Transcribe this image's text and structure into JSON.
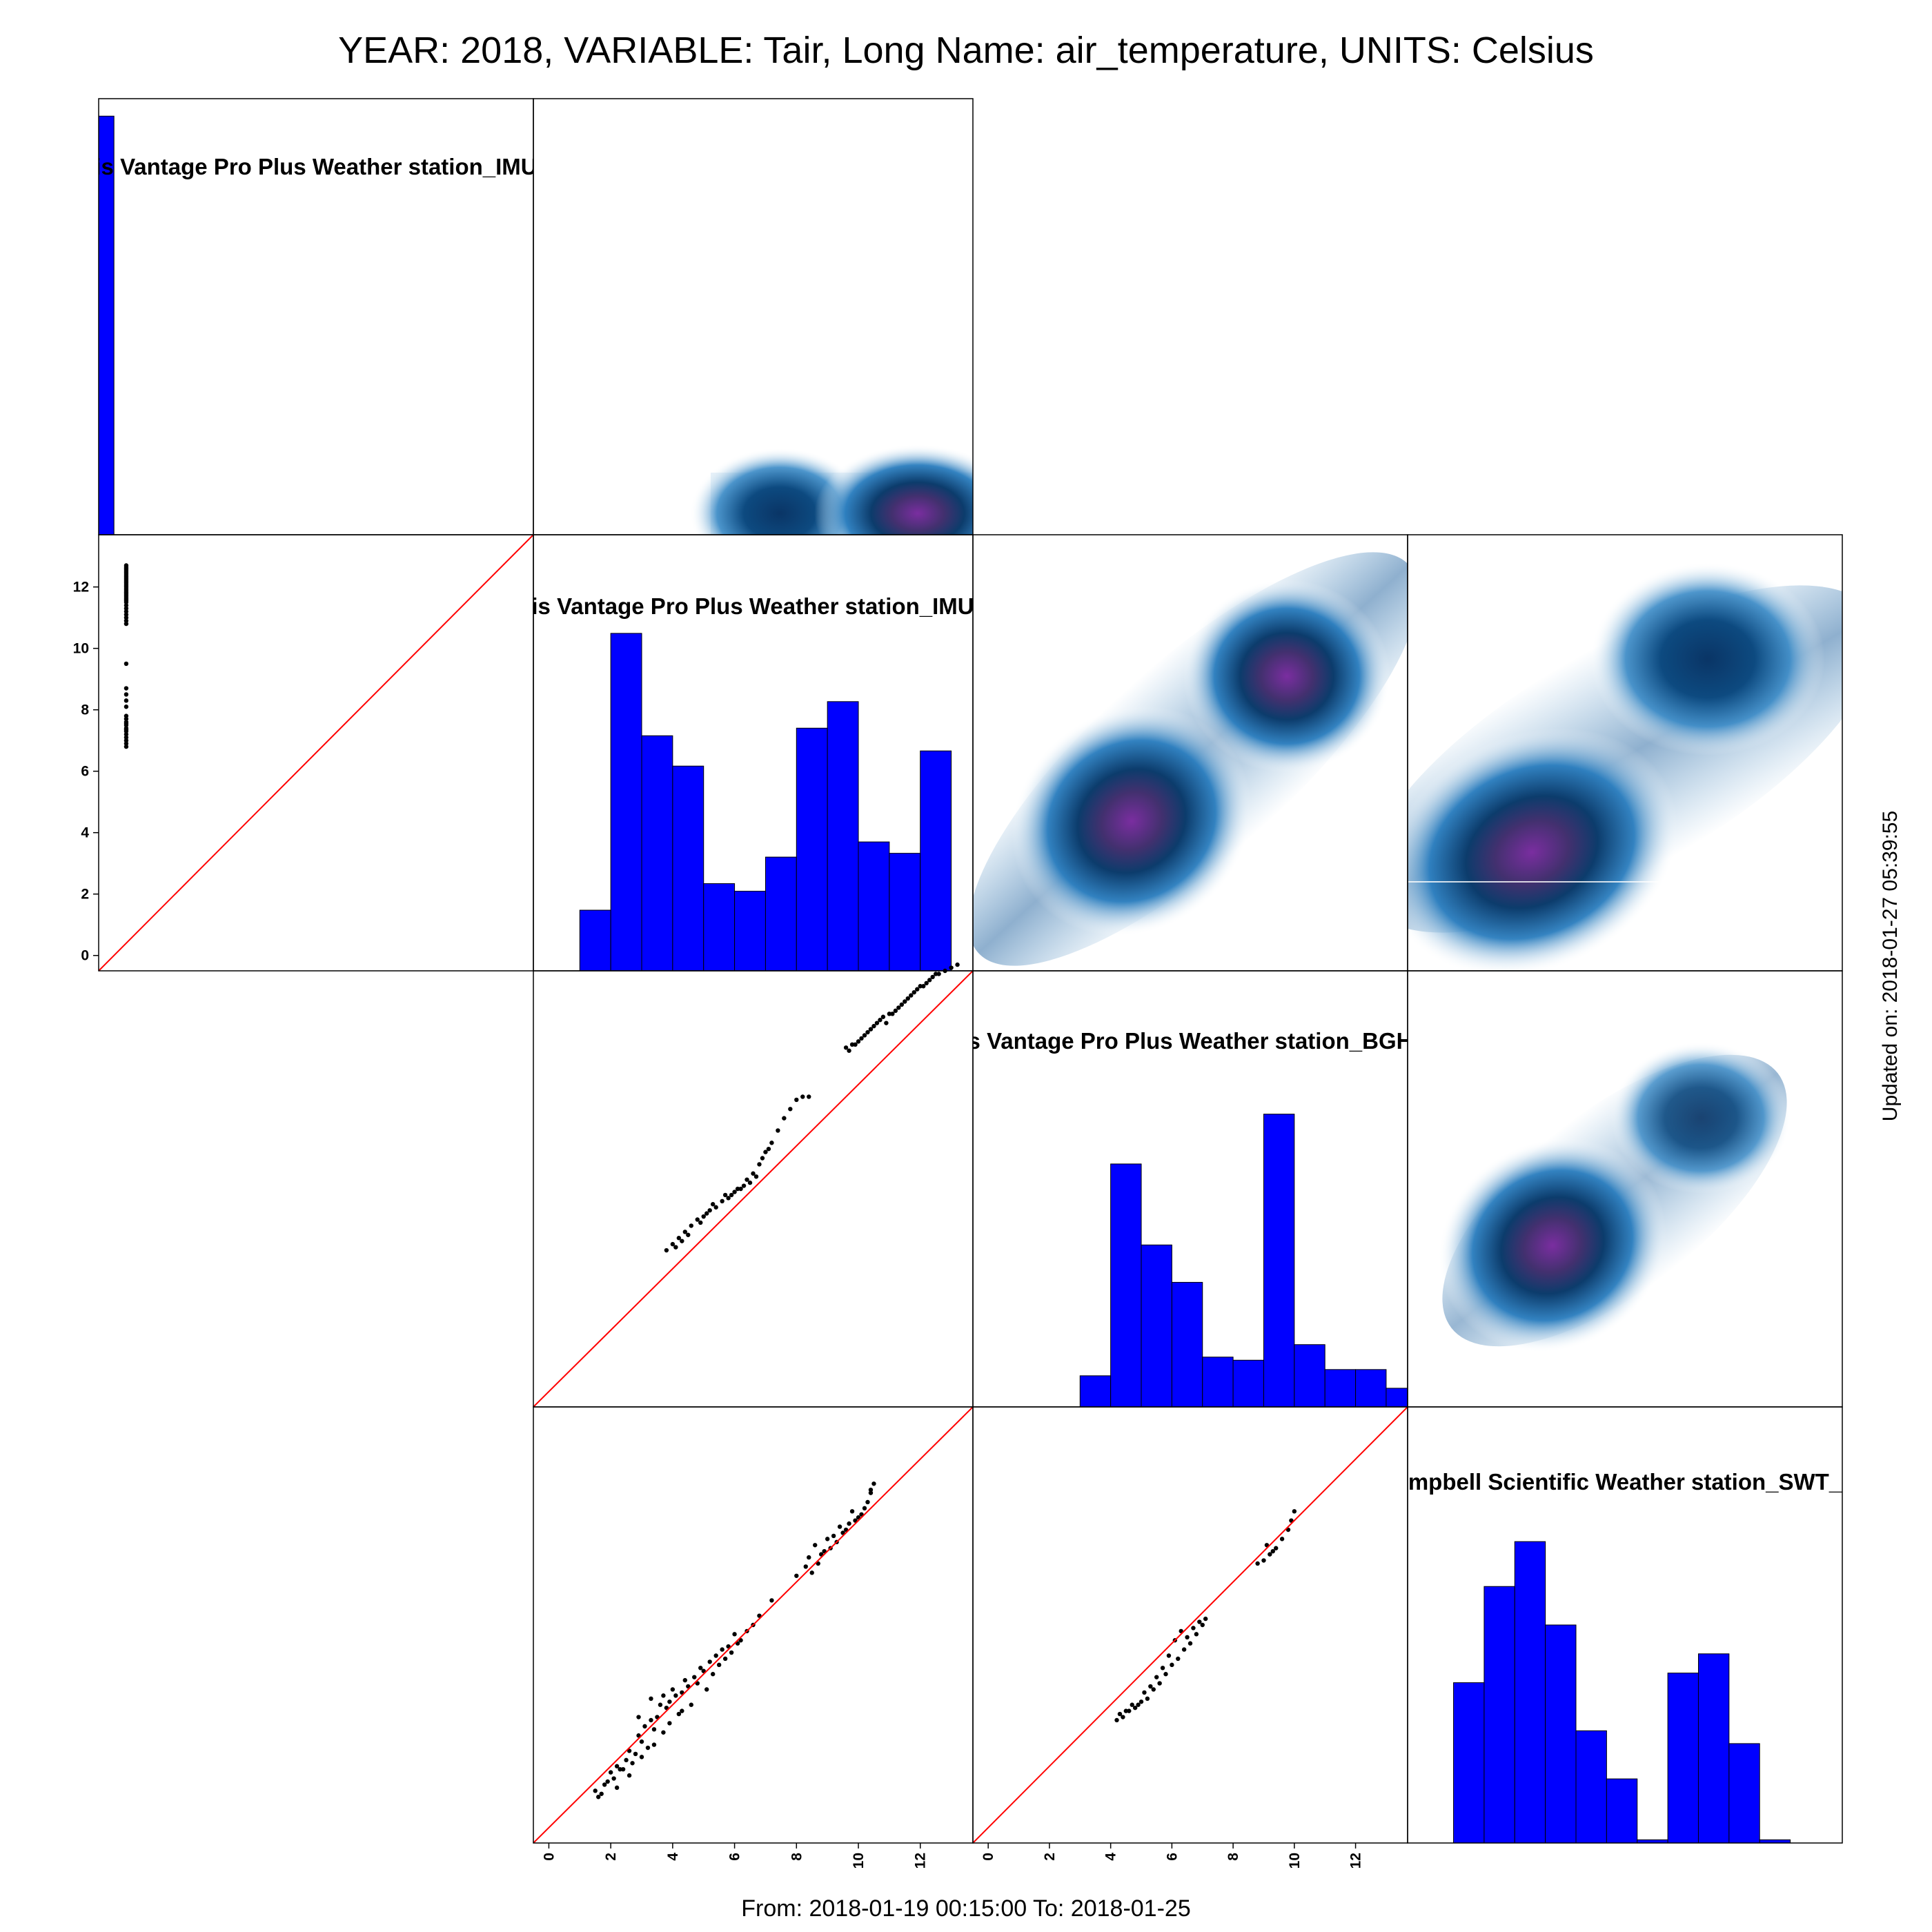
{
  "title": "YEAR: 2018, VARIABLE: Tair, Long Name: air_temperature, UNITS: Celsius",
  "footer": "From: 2018-01-19 00:15:00 To: 2018-01-25",
  "updated": "Updated on: 2018-01-27 05:39:55",
  "colors": {
    "hist": "#0000ff",
    "identity_line": "#ff0000",
    "points": "#000000",
    "density_ramp": [
      "#ffffff",
      "#2f7fc0",
      "#0d3f70",
      "#7a2ea0"
    ]
  },
  "chart_data": {
    "type": "scatter-matrix",
    "stations": [
      "is Vantage Pro Plus Weather station_IMU",
      "is Vantage Pro Plus Weather station_IMU",
      "s Vantage Pro Plus Weather station_BGH",
      "mpbell Scientific  Weather station_SWT_"
    ],
    "axis_range": [
      -0.5,
      13.7
    ],
    "left_ticks": [
      "0",
      "2",
      "4",
      "6",
      "8",
      "10",
      "12"
    ],
    "bottom_ticks_panel2": [
      "0",
      "2",
      "4",
      "6",
      "8",
      "10",
      "12"
    ],
    "bottom_ticks_panel3": [
      "0",
      "2",
      "4",
      "6",
      "8",
      "10",
      "12"
    ],
    "histograms": [
      {
        "panel": "1-1",
        "bins": [
          [
            -0.5,
            0.0,
            24
          ]
        ],
        "ymax": 25
      },
      {
        "panel": "2-2",
        "bins": [
          [
            1.0,
            2.0,
            1.6
          ],
          [
            2.0,
            3.0,
            8.9
          ],
          [
            3.0,
            4.0,
            6.2
          ],
          [
            4.0,
            5.0,
            5.4
          ],
          [
            5.0,
            6.0,
            2.3
          ],
          [
            6.0,
            7.0,
            2.1
          ],
          [
            7.0,
            8.0,
            3.0
          ],
          [
            8.0,
            9.0,
            6.4
          ],
          [
            9.0,
            10.0,
            7.1
          ],
          [
            10.0,
            11.0,
            3.4
          ],
          [
            11.0,
            12.0,
            3.1
          ],
          [
            12.0,
            13.0,
            5.8
          ]
        ],
        "ymax": 11.5
      },
      {
        "panel": "3-3",
        "bins": [
          [
            3.0,
            4.0,
            1.0
          ],
          [
            4.0,
            5.0,
            7.8
          ],
          [
            5.0,
            6.0,
            5.2
          ],
          [
            6.0,
            7.0,
            4.0
          ],
          [
            7.0,
            8.0,
            1.6
          ],
          [
            8.0,
            9.0,
            1.5
          ],
          [
            9.0,
            10.0,
            9.4
          ],
          [
            10.0,
            11.0,
            2.0
          ],
          [
            11.0,
            12.0,
            1.2
          ],
          [
            12.0,
            13.0,
            1.2
          ],
          [
            13.0,
            14.0,
            0.6
          ]
        ],
        "ymax": 14.0
      },
      {
        "panel": "4-4",
        "bins": [
          [
            1.0,
            2.0,
            5.0
          ],
          [
            2.0,
            3.0,
            8.0
          ],
          [
            3.0,
            4.0,
            9.4
          ],
          [
            4.0,
            5.0,
            6.8
          ],
          [
            5.0,
            6.0,
            3.5
          ],
          [
            6.0,
            7.0,
            2.0
          ],
          [
            7.0,
            8.0,
            0.1
          ],
          [
            8.0,
            9.0,
            5.3
          ],
          [
            9.0,
            10.0,
            5.9
          ],
          [
            10.0,
            11.0,
            3.1
          ],
          [
            11.0,
            12.0,
            0.1
          ]
        ],
        "ymax": 13.6
      }
    ],
    "scatter": [
      {
        "panel": "2-1",
        "x": [
          0.4,
          0.4,
          0.4,
          0.4,
          0.4,
          0.4,
          0.4,
          0.4,
          0.4,
          0.4,
          0.4,
          0.4,
          0.4,
          0.4,
          0.4,
          0.4,
          0.4,
          0.4,
          0.4,
          0.4,
          0.4,
          0.4,
          0.4,
          0.4,
          0.4,
          0.4,
          0.4,
          0.4,
          0.4,
          0.4,
          0.4,
          0.4,
          0.4,
          0.4,
          0.4,
          0.4,
          0.4,
          0.4,
          0.4,
          0.4,
          0.4,
          0.4,
          0.4,
          0.4,
          0.4,
          0.4,
          0.4,
          0.4,
          0.4,
          0.4
        ],
        "y": [
          12.6,
          12.5,
          12.4,
          12.3,
          12.2,
          12.1,
          12.0,
          11.9,
          11.8,
          11.7,
          11.6,
          11.5,
          11.4,
          11.3,
          11.2,
          11.1,
          11.0,
          10.9,
          10.8,
          12.7,
          12.65,
          12.55,
          12.45,
          12.35,
          12.25,
          12.15,
          12.05,
          11.95,
          11.85,
          11.75,
          11.65,
          11.55,
          9.5,
          8.7,
          8.5,
          8.3,
          8.1,
          7.8,
          7.7,
          7.6,
          7.5,
          7.4,
          7.3,
          7.2,
          7.1,
          7.0,
          6.9,
          6.8,
          7.35,
          7.55
        ]
      },
      {
        "panel": "3-2",
        "x": [
          3.8,
          4.0,
          4.2,
          4.4,
          4.6,
          4.8,
          5.0,
          5.2,
          5.4,
          5.6,
          5.8,
          6.0,
          6.2,
          6.4,
          6.6,
          6.8,
          7.0,
          7.2,
          7.4,
          7.6,
          7.8,
          8.0,
          8.2,
          8.4,
          9.6,
          9.8,
          10.0,
          10.2,
          10.4,
          10.6,
          10.8,
          11.0,
          11.2,
          11.4,
          11.6,
          11.8,
          12.0,
          12.2,
          12.4,
          12.6,
          12.8,
          13.0,
          13.2,
          4.1,
          4.3,
          4.5,
          4.9,
          5.1,
          5.3,
          5.7,
          5.9,
          6.1,
          6.3,
          6.5,
          6.7,
          6.9,
          7.1,
          9.7,
          9.9,
          10.1,
          10.3,
          10.5,
          10.7,
          10.9,
          11.1,
          11.3,
          11.5,
          11.7,
          11.9,
          12.1,
          12.3,
          12.5
        ],
        "y": [
          4.6,
          4.8,
          5.0,
          5.2,
          5.4,
          5.6,
          5.7,
          5.9,
          6.0,
          6.2,
          6.3,
          6.5,
          6.6,
          6.9,
          7.1,
          7.4,
          7.8,
          8.1,
          8.5,
          8.9,
          9.2,
          9.5,
          9.6,
          9.6,
          11.2,
          11.3,
          11.4,
          11.6,
          11.8,
          12.0,
          12.2,
          12.3,
          12.4,
          12.6,
          12.8,
          13.0,
          13.2,
          13.3,
          13.5,
          13.6,
          13.7,
          13.8,
          13.9,
          4.7,
          4.9,
          5.1,
          5.5,
          5.8,
          6.1,
          6.4,
          6.4,
          6.6,
          6.7,
          6.8,
          7.0,
          7.6,
          7.9,
          11.1,
          11.3,
          11.5,
          11.7,
          11.9,
          12.1,
          12.0,
          12.3,
          12.5,
          12.7,
          12.9,
          13.1,
          13.2,
          13.4,
          13.6
        ]
      },
      {
        "panel": "4-2",
        "x": [
          1.5,
          1.7,
          1.9,
          2.0,
          2.2,
          2.3,
          2.5,
          2.6,
          2.8,
          2.9,
          3.0,
          3.1,
          3.3,
          3.4,
          3.5,
          3.6,
          3.8,
          3.9,
          4.0,
          4.1,
          4.3,
          4.4,
          4.5,
          4.7,
          4.9,
          5.0,
          5.2,
          5.4,
          5.6,
          5.8,
          6.0,
          6.2,
          6.4,
          6.6,
          6.8,
          7.2,
          8.0,
          8.3,
          8.5,
          8.7,
          8.9,
          9.1,
          9.3,
          9.5,
          9.7,
          9.9,
          10.0,
          10.1,
          10.2,
          10.3,
          10.4,
          10.5,
          1.8,
          2.1,
          2.4,
          2.7,
          3.2,
          3.7,
          4.2,
          4.6,
          4.8,
          5.1,
          5.3,
          5.5,
          5.7,
          5.9,
          6.1,
          8.4,
          8.6,
          8.8,
          9.0,
          9.2,
          9.4,
          9.6,
          9.8,
          10.4,
          1.6,
          2.2,
          2.6,
          3.0,
          3.4,
          3.9,
          4.3,
          2.9,
          3.3,
          3.7
        ],
        "y": [
          1.2,
          1.1,
          1.5,
          1.8,
          2.0,
          1.9,
          2.2,
          2.5,
          2.4,
          3.0,
          2.8,
          3.3,
          3.5,
          3.2,
          3.6,
          4.0,
          3.9,
          4.1,
          4.5,
          4.3,
          4.4,
          4.8,
          4.6,
          4.9,
          5.2,
          5.1,
          5.4,
          5.6,
          5.8,
          5.9,
          6.3,
          6.1,
          6.4,
          6.6,
          6.9,
          7.4,
          8.2,
          8.5,
          8.3,
          8.6,
          9.0,
          9.1,
          9.3,
          9.6,
          9.9,
          10.0,
          10.1,
          10.2,
          10.4,
          10.6,
          10.9,
          11.2,
          1.4,
          1.6,
          1.9,
          2.1,
          2.6,
          3.1,
          3.7,
          4.0,
          4.7,
          4.5,
          5.0,
          5.3,
          5.5,
          5.7,
          6.0,
          8.8,
          9.2,
          8.9,
          9.4,
          9.5,
          9.8,
          9.7,
          10.3,
          11.0,
          1.0,
          1.3,
          1.7,
          2.3,
          2.7,
          3.4,
          3.8,
          3.6,
          4.2,
          4.3
        ]
      },
      {
        "panel": "4-3",
        "x": [
          4.2,
          4.4,
          4.6,
          4.8,
          5.0,
          5.2,
          5.4,
          5.6,
          5.8,
          6.0,
          6.2,
          6.4,
          6.6,
          6.8,
          7.0,
          7.1,
          8.8,
          9.0,
          9.2,
          9.4,
          9.6,
          9.8,
          9.9,
          10.0,
          4.3,
          4.5,
          4.7,
          4.9,
          5.1,
          5.3,
          5.5,
          5.7,
          5.9,
          6.1,
          6.3,
          6.5,
          6.7,
          6.9,
          9.1,
          9.3
        ],
        "y": [
          3.5,
          3.6,
          3.8,
          3.9,
          4.1,
          4.2,
          4.5,
          4.7,
          5.0,
          5.3,
          5.5,
          5.8,
          6.0,
          6.3,
          6.6,
          6.8,
          8.6,
          8.7,
          8.9,
          9.1,
          9.4,
          9.7,
          10.0,
          10.3,
          3.7,
          3.8,
          4.0,
          4.0,
          4.4,
          4.6,
          4.9,
          5.2,
          5.6,
          6.1,
          6.4,
          6.2,
          6.5,
          6.7,
          9.2,
          9.0
        ]
      }
    ],
    "density_panels": [
      "1-2",
      "2-3",
      "2-4",
      "3-4"
    ]
  }
}
